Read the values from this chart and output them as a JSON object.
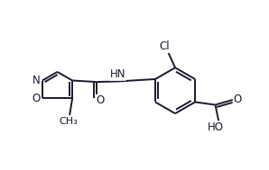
{
  "bg_color": "#ffffff",
  "line_color": "#1a1a2e",
  "line_width": 1.4,
  "font_size": 8.5,
  "figsize": [
    2.98,
    1.89
  ],
  "dpi": 100,
  "xlim": [
    0.0,
    9.5
  ],
  "ylim": [
    0.5,
    5.5
  ]
}
